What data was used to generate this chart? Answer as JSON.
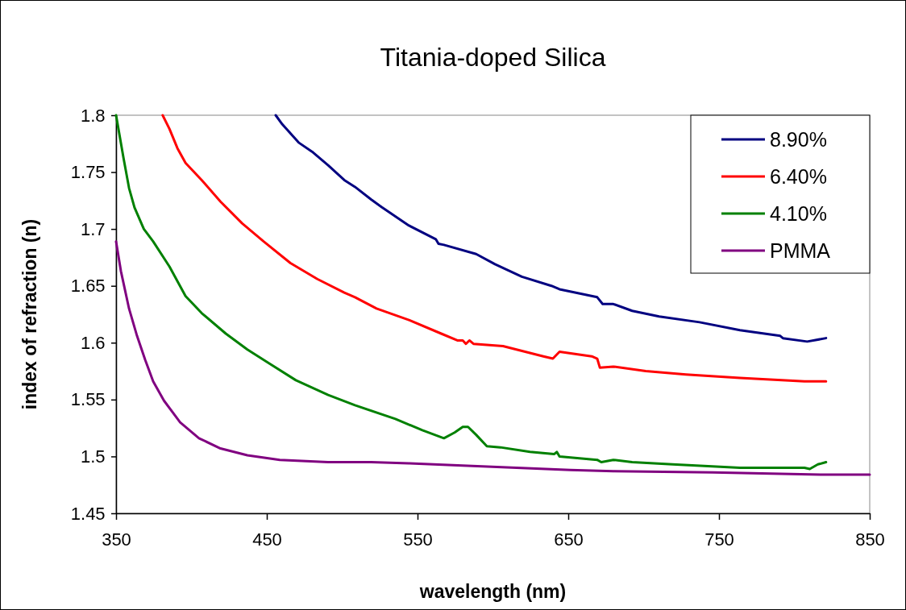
{
  "chart_data": {
    "type": "line",
    "title": "Titania-doped Silica",
    "xlabel": "wavelength (nm)",
    "ylabel": "index of refraction (n)",
    "xlim": [
      350,
      850
    ],
    "xticks": [
      350,
      450,
      550,
      650,
      750,
      850
    ],
    "ylim": [
      1.45,
      1.8
    ],
    "yticks": [
      1.45,
      1.5,
      1.55,
      1.6,
      1.65,
      1.7,
      1.75,
      1.8
    ],
    "grid": false,
    "legend": "top right",
    "marker": "none",
    "line_style": "solid",
    "series": [
      {
        "name": "8.90%",
        "color": "#000080",
        "x": [
          455.9,
          460.3,
          471.1,
          480.0,
          490.7,
          501.4,
          508.5,
          519.2,
          526.4,
          544.3,
          562.1,
          563.9,
          567.5,
          588.9,
          601.4,
          619.2,
          638.8,
          644.2,
          669.2,
          672.8,
          679.9,
          692.4,
          710.3,
          737.1,
          763.9,
          790.6,
          792.4,
          808.5,
          821.0
        ],
        "values": [
          1.8,
          1.792,
          1.776,
          1.768,
          1.756,
          1.743,
          1.737,
          1.726,
          1.719,
          1.703,
          1.691,
          1.687,
          1.686,
          1.678,
          1.669,
          1.658,
          1.65,
          1.647,
          1.64,
          1.634,
          1.634,
          1.628,
          1.623,
          1.618,
          1.611,
          1.606,
          1.604,
          1.601,
          1.604
        ]
      },
      {
        "name": "6.40%",
        "color": "#ff0000",
        "x": [
          380.9,
          385.4,
          390.7,
          396.1,
          406.8,
          419.3,
          433.6,
          447.9,
          465.7,
          483.5,
          501.4,
          508.5,
          522.8,
          544.3,
          565.7,
          576.4,
          580.0,
          582.1,
          584.4,
          587.1,
          606.7,
          633.5,
          639.8,
          644.2,
          665.6,
          669.2,
          671.0,
          679.9,
          701.4,
          728.1,
          763.9,
          806.7,
          821.0
        ],
        "values": [
          1.8,
          1.788,
          1.771,
          1.758,
          1.743,
          1.724,
          1.705,
          1.689,
          1.67,
          1.656,
          1.644,
          1.64,
          1.63,
          1.62,
          1.608,
          1.602,
          1.602,
          1.599,
          1.602,
          1.599,
          1.597,
          1.588,
          1.586,
          1.592,
          1.588,
          1.586,
          1.578,
          1.579,
          1.575,
          1.572,
          1.569,
          1.566,
          1.566
        ]
      },
      {
        "name": "4.10%",
        "color": "#008000",
        "x": [
          350,
          355.0,
          358.6,
          362.2,
          368.4,
          374.6,
          385.4,
          396.1,
          406.8,
          422.8,
          437.1,
          451.4,
          469.3,
          490.7,
          508.5,
          535.3,
          553.2,
          567.5,
          574.6,
          580.0,
          583.5,
          588.9,
          596.0,
          605.0,
          624.6,
          640.6,
          642.4,
          644.2,
          669.2,
          671.9,
          679.9,
          692.4,
          719.2,
          763.9,
          806.7,
          810.2,
          815.6,
          821.0
        ],
        "values": [
          1.8,
          1.762,
          1.736,
          1.719,
          1.7,
          1.689,
          1.667,
          1.641,
          1.626,
          1.608,
          1.594,
          1.582,
          1.567,
          1.554,
          1.545,
          1.533,
          1.523,
          1.516,
          1.521,
          1.526,
          1.526,
          1.519,
          1.509,
          1.508,
          1.504,
          1.502,
          1.504,
          1.5,
          1.497,
          1.495,
          1.497,
          1.495,
          1.493,
          1.49,
          1.49,
          1.489,
          1.493,
          1.495
        ]
      },
      {
        "name": "PMMA",
        "color": "#800080",
        "x": [
          350,
          353.2,
          358.6,
          363.9,
          369.3,
          374.6,
          381.8,
          392.5,
          405.0,
          419.3,
          437.1,
          458.6,
          490.7,
          519.2,
          544.3,
          579.9,
          615.7,
          651.4,
          679.9,
          746.0,
          817.4,
          850
        ],
        "values": [
          1.689,
          1.663,
          1.63,
          1.606,
          1.585,
          1.566,
          1.549,
          1.53,
          1.516,
          1.507,
          1.501,
          1.497,
          1.495,
          1.495,
          1.494,
          1.492,
          1.49,
          1.488,
          1.487,
          1.486,
          1.484,
          1.484
        ]
      }
    ]
  }
}
